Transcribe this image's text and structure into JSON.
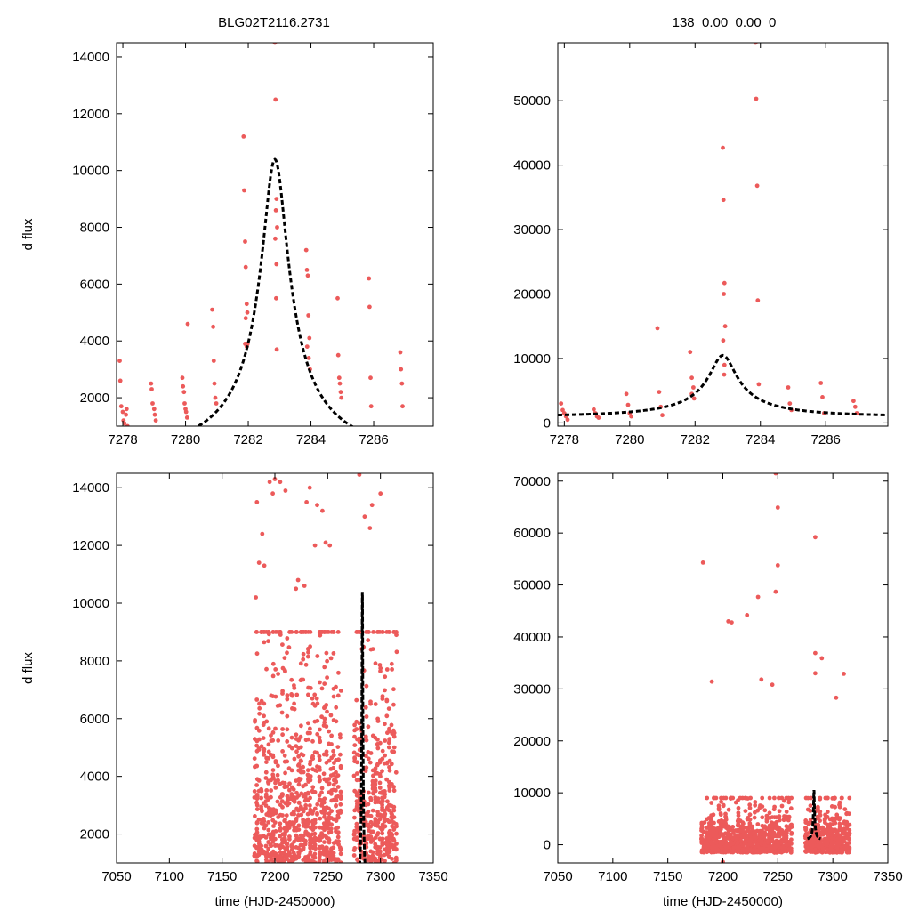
{
  "figure": {
    "title_left": "BLG02T2116.2731",
    "title_right": "138  0.00  0.00  0"
  },
  "colors": {
    "points": "#ec5a5a",
    "model": "#000000",
    "frame": "#000000"
  },
  "chart_data": [
    {
      "type": "scatter",
      "id": "top-left",
      "xlim": [
        7277.8,
        7287.9
      ],
      "ylim": [
        1000,
        14500
      ],
      "xticks": [
        7278,
        7280,
        7282,
        7284,
        7286
      ],
      "yticks": [
        2000,
        4000,
        6000,
        8000,
        10000,
        12000,
        14000
      ],
      "xlabel": "",
      "ylabel": "d flux",
      "model_style": "dashed",
      "model": {
        "t0": 7282.85,
        "u0": 0.1,
        "tE": 9.0,
        "base": 0,
        "scale": 1150
      },
      "series": [
        {
          "name": "data",
          "x": [
            7277.9,
            7277.92,
            7277.95,
            7278.0,
            7278.02,
            7278.05,
            7278.1,
            7278.12,
            7278.15,
            7278.9,
            7278.92,
            7278.95,
            7279.0,
            7279.02,
            7279.05,
            7279.9,
            7279.92,
            7279.95,
            7279.97,
            7280.0,
            7280.02,
            7280.05,
            7280.07,
            7280.85,
            7280.88,
            7280.9,
            7280.92,
            7280.95,
            7280.98,
            7281.85,
            7281.87,
            7281.9,
            7281.92,
            7281.95,
            7281.97,
            7281.92,
            7281.98,
            7281.95,
            7281.9,
            7282.85,
            7282.87,
            7282.9,
            7282.88,
            7282.92,
            7282.86,
            7282.9,
            7282.89,
            7282.91,
            7283.85,
            7283.87,
            7283.9,
            7283.92,
            7283.95,
            7283.88,
            7283.93,
            7283.97,
            7284.85,
            7284.87,
            7284.9,
            7284.92,
            7284.95,
            7284.97,
            7285.85,
            7285.87,
            7285.9,
            7285.92,
            7286.85,
            7286.87,
            7286.9,
            7286.92
          ],
          "y": [
            3300,
            2600,
            1700,
            1500,
            1200,
            1100,
            1400,
            1600,
            1000,
            2500,
            2300,
            1800,
            1600,
            1400,
            1200,
            2700,
            2400,
            2200,
            1800,
            1600,
            1500,
            1300,
            4600,
            5100,
            4500,
            3300,
            2500,
            2000,
            1800,
            11200,
            9300,
            7500,
            6600,
            5300,
            5000,
            4800,
            3900,
            3800,
            3900,
            14500,
            12500,
            9000,
            8600,
            8000,
            7600,
            6700,
            5500,
            3700,
            7200,
            6500,
            6300,
            4900,
            4100,
            3800,
            3400,
            3000,
            5500,
            3500,
            2700,
            2500,
            2200,
            2000,
            6200,
            5200,
            2700,
            1700,
            3600,
            3000,
            2500,
            1700
          ]
        }
      ]
    },
    {
      "type": "scatter",
      "id": "top-right",
      "xlim": [
        7277.8,
        7287.9
      ],
      "ylim": [
        -500,
        59000
      ],
      "xticks": [
        7278,
        7280,
        7282,
        7284,
        7286
      ],
      "yticks": [
        0,
        10000,
        20000,
        30000,
        40000,
        50000
      ],
      "xlabel": "",
      "ylabel": "",
      "model_style": "dashed",
      "model": {
        "t0": 7282.85,
        "u0": 0.1,
        "tE": 9.0,
        "base": 1000,
        "scale": 1050
      },
      "series": [
        {
          "name": "data",
          "x": [
            7277.9,
            7277.95,
            7278.0,
            7278.05,
            7278.1,
            7278.9,
            7278.95,
            7279.0,
            7279.05,
            7279.9,
            7279.95,
            7280.0,
            7280.05,
            7280.85,
            7280.9,
            7280.95,
            7281.0,
            7281.85,
            7281.9,
            7281.95,
            7281.9,
            7281.97,
            7282.85,
            7282.87,
            7282.9,
            7282.88,
            7282.92,
            7282.86,
            7282.9,
            7282.89,
            7283.85,
            7283.87,
            7283.9,
            7283.92,
            7283.95,
            7284.85,
            7284.9,
            7284.95,
            7285.85,
            7285.9,
            7285.95,
            7286.85,
            7286.9,
            7286.95
          ],
          "y": [
            3000,
            2000,
            1500,
            1000,
            500,
            2100,
            1500,
            1000,
            800,
            4500,
            2800,
            1500,
            1000,
            14700,
            4800,
            2500,
            1200,
            11000,
            7000,
            5500,
            4500,
            3800,
            42700,
            34600,
            21700,
            20000,
            15000,
            12800,
            9000,
            7500,
            59000,
            50300,
            36800,
            19000,
            6000,
            5500,
            3000,
            2000,
            6200,
            4000,
            1500,
            3400,
            2500,
            1500
          ]
        }
      ]
    },
    {
      "type": "scatter",
      "id": "bottom-left",
      "xlim": [
        7050,
        7350
      ],
      "ylim": [
        1000,
        14500
      ],
      "xticks": [
        7050,
        7100,
        7150,
        7200,
        7250,
        7300,
        7350
      ],
      "yticks": [
        2000,
        4000,
        6000,
        8000,
        10000,
        12000,
        14000
      ],
      "xlabel": "time (HJD-2450000)",
      "ylabel": "d flux",
      "model_style": "solid",
      "model": {
        "t0": 7282.85,
        "u0": 0.1,
        "tE": 9.0,
        "base": 0,
        "scale": 1150
      },
      "dense": {
        "seed": 11,
        "n": 1500,
        "xmin": 7180,
        "xmax": 7315,
        "gapx": [
          7262,
          7275
        ],
        "ymin": 1000,
        "ymax": 9000,
        "ydecay": 2600
      },
      "series": [
        {
          "name": "outliers",
          "x": [
            7183,
            7188,
            7195,
            7200,
            7205,
            7210,
            7222,
            7228,
            7233,
            7240,
            7248,
            7252,
            7280,
            7285,
            7292,
            7300,
            7190,
            7220,
            7230,
            7245,
            7185,
            7182,
            7198,
            7238,
            7290
          ],
          "y": [
            13500,
            12400,
            14200,
            14300,
            14200,
            13900,
            10800,
            10600,
            14000,
            13400,
            12100,
            12000,
            14450,
            13000,
            13400,
            13800,
            11300,
            10500,
            13500,
            13200,
            11400,
            10200,
            13800,
            12000,
            12600
          ]
        }
      ]
    },
    {
      "type": "scatter",
      "id": "bottom-right",
      "xlim": [
        7050,
        7350
      ],
      "ylim": [
        -3500,
        71500
      ],
      "xticks": [
        7050,
        7100,
        7150,
        7200,
        7250,
        7300,
        7350
      ],
      "yticks": [
        0,
        10000,
        20000,
        30000,
        40000,
        50000,
        60000,
        70000
      ],
      "xlabel": "time (HJD-2450000)",
      "ylabel": "",
      "model_style": "solid",
      "model": {
        "t0": 7282.85,
        "u0": 0.1,
        "tE": 9.0,
        "base": 1000,
        "scale": 1050
      },
      "dense": {
        "seed": 23,
        "n": 1500,
        "xmin": 7180,
        "xmax": 7315,
        "gapx": [
          7262,
          7275
        ],
        "ymin": -1500,
        "ymax": 9000,
        "ydecay": 3000
      },
      "series": [
        {
          "name": "outliers",
          "x": [
            7182,
            7205,
            7222,
            7248,
            7250,
            7250,
            7248,
            7284,
            7284,
            7284,
            7208,
            7232,
            7190,
            7235,
            7245,
            7303,
            7310,
            7290,
            7200
          ],
          "y": [
            54300,
            43000,
            44200,
            71500,
            64900,
            53800,
            48700,
            59200,
            36900,
            33000,
            42800,
            47700,
            31400,
            31800,
            30800,
            28300,
            32900,
            35900,
            -3300
          ]
        }
      ]
    }
  ]
}
